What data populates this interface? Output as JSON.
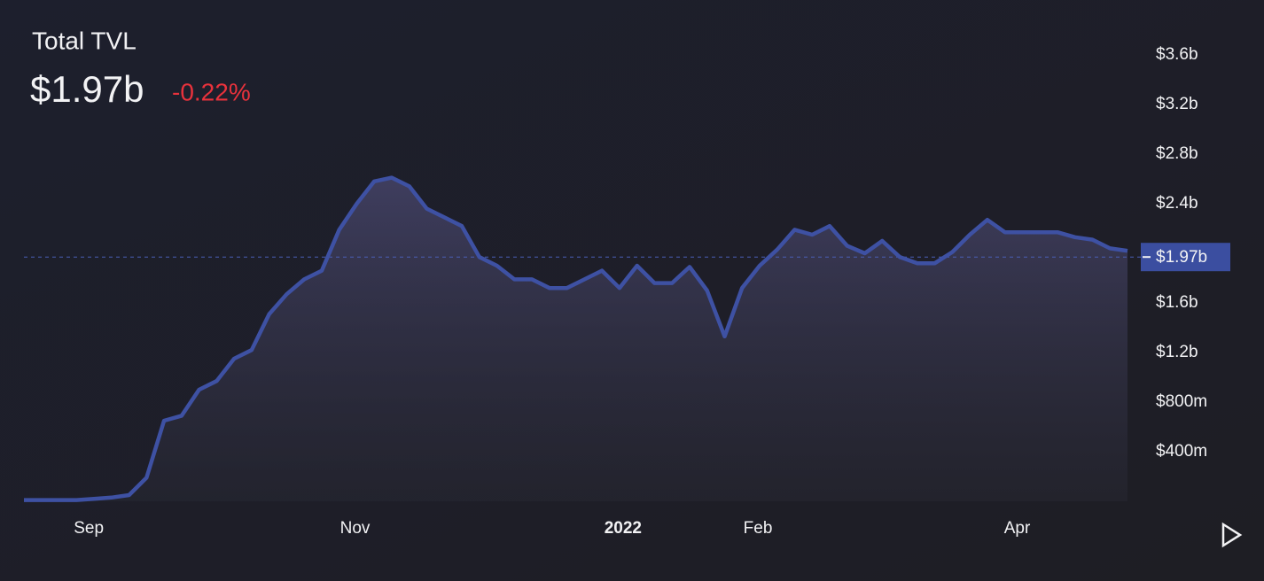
{
  "chart_data": {
    "type": "area",
    "title": "Total TVL",
    "current": {
      "value": 1.97,
      "label": "$1.97b"
    },
    "change": "-0.22%",
    "values": [
      0.01,
      0.01,
      0.01,
      0.01,
      0.02,
      0.03,
      0.05,
      0.19,
      0.65,
      0.69,
      0.9,
      0.97,
      1.15,
      1.22,
      1.51,
      1.67,
      1.79,
      1.86,
      2.19,
      2.4,
      2.58,
      2.61,
      2.54,
      2.36,
      2.29,
      2.22,
      1.97,
      1.9,
      1.79,
      1.79,
      1.72,
      1.72,
      1.79,
      1.86,
      1.72,
      1.9,
      1.76,
      1.76,
      1.89,
      1.7,
      1.33,
      1.72,
      1.9,
      2.03,
      2.19,
      2.15,
      2.22,
      2.06,
      2.0,
      2.1,
      1.97,
      1.92,
      1.92,
      2.01,
      2.15,
      2.27,
      2.17,
      2.17,
      2.17,
      2.17,
      2.13,
      2.11,
      2.04,
      2.02
    ],
    "color": "#3e51a3",
    "xlim": [
      0,
      63
    ],
    "xticks": [
      {
        "value": 3.7,
        "label": "Sep"
      },
      {
        "value": 18.9,
        "label": "Nov"
      },
      {
        "value": 34.2,
        "label": "2022"
      },
      {
        "value": 41.9,
        "label": "Feb"
      },
      {
        "value": 56.7,
        "label": "Apr"
      }
    ],
    "ylim": [
      0,
      3.8
    ],
    "yticks": [
      {
        "value": 0.4,
        "label": "$400m"
      },
      {
        "value": 0.8,
        "label": "$800m"
      },
      {
        "value": 1.2,
        "label": "$1.2b"
      },
      {
        "value": 1.6,
        "label": "$1.6b"
      },
      {
        "value": 2.4,
        "label": "$2.4b"
      },
      {
        "value": 2.8,
        "label": "$2.8b"
      },
      {
        "value": 3.2,
        "label": "$3.2b"
      },
      {
        "value": 3.6,
        "label": "$3.6b"
      }
    ],
    "grid": false
  }
}
